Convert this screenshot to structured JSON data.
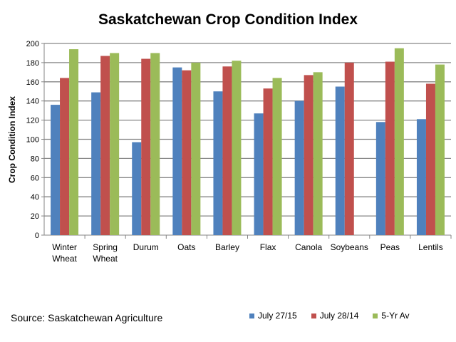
{
  "chart_data": {
    "type": "bar",
    "title": "Saskatchewan Crop Condition Index",
    "xlabel": "",
    "ylabel": "Crop Condition Index",
    "ylim": [
      0,
      200
    ],
    "yticks": [
      0,
      20,
      40,
      60,
      80,
      100,
      120,
      140,
      160,
      180,
      200
    ],
    "grid": true,
    "legend_position": "bottom-right",
    "categories": [
      [
        "Winter",
        "Wheat"
      ],
      [
        "Spring",
        "Wheat"
      ],
      [
        "Durum"
      ],
      [
        "Oats"
      ],
      [
        "Barley"
      ],
      [
        "Flax"
      ],
      [
        "Canola"
      ],
      [
        "Soybeans"
      ],
      [
        "Peas"
      ],
      [
        "Lentils"
      ]
    ],
    "series": [
      {
        "name": "July 27/15",
        "color": "#4f81bd",
        "values": [
          136,
          149,
          97,
          175,
          150,
          127,
          140,
          155,
          118,
          121
        ]
      },
      {
        "name": "July 28/14",
        "color": "#c0504d",
        "values": [
          164,
          187,
          184,
          172,
          176,
          153,
          167,
          180,
          181,
          158
        ]
      },
      {
        "name": "5-Yr Av",
        "color": "#9bbb59",
        "values": [
          194,
          190,
          190,
          180,
          182,
          164,
          170,
          null,
          195,
          178
        ]
      }
    ],
    "source": "Source: Saskatchewan Agriculture"
  }
}
